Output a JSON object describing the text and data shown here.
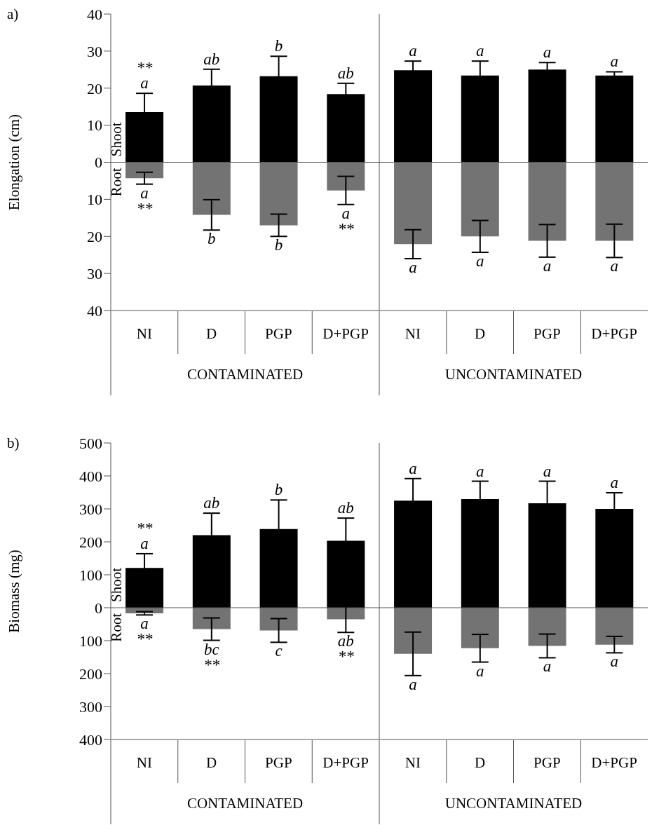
{
  "chart_data": [
    {
      "type": "bar",
      "title": "a)",
      "ylabel": "Elongation (cm)",
      "categories": [
        "NI",
        "D",
        "PGP",
        "D+PGP",
        "NI",
        "D",
        "PGP",
        "D+PGP"
      ],
      "stacked": true,
      "series": [
        {
          "name": "Shoot",
          "color": "#000000",
          "values": [
            13.5,
            20.7,
            23.2,
            18.4,
            24.8,
            23.4,
            25.0,
            23.4
          ],
          "errors": [
            5.1,
            4.4,
            5.4,
            2.9,
            2.5,
            3.9,
            1.9,
            1.0
          ],
          "value_labels": [
            "**\na",
            "ab",
            "b",
            "ab",
            "a",
            "a",
            "a",
            "a"
          ]
        },
        {
          "name": "Root",
          "color": "#737373",
          "values": [
            -4.3,
            -14.2,
            -17.0,
            -7.6,
            -22.1,
            -20.0,
            -21.2,
            -21.2
          ],
          "errors": [
            1.6,
            4.1,
            3.0,
            3.8,
            3.9,
            4.3,
            4.4,
            4.5
          ],
          "value_labels": [
            "a\n**",
            "b",
            "b",
            "a\n**",
            "a",
            "a",
            "a",
            "a"
          ]
        }
      ],
      "ylim": [
        -40,
        40
      ],
      "yticks": [
        40,
        30,
        20,
        10,
        0,
        {
          "value": -10,
          "label": "10"
        },
        {
          "value": -20,
          "label": "20"
        },
        {
          "value": -30,
          "label": "30"
        },
        {
          "value": -40,
          "label": "40"
        }
      ],
      "ref_lines": [
        {
          "axis": "y",
          "value": 0,
          "color": "#555555"
        }
      ],
      "annotations": [
        "CONTAMINATED",
        "UNCONTAMINATED"
      ]
    },
    {
      "type": "bar",
      "title": "b)",
      "ylabel": "Biomass (mg)",
      "categories": [
        "NI",
        "D",
        "PGP",
        "D+PGP",
        "NI",
        "D",
        "PGP",
        "D+PGP"
      ],
      "stacked": true,
      "series": [
        {
          "name": "Shoot",
          "color": "#000000",
          "values": [
            121,
            220,
            239,
            203,
            325,
            330,
            317,
            300
          ],
          "errors": [
            43,
            67,
            88,
            69,
            67,
            54,
            67,
            49
          ],
          "value_labels": [
            "**\na",
            "ab",
            "b",
            "ab",
            "a",
            "a",
            "a",
            "a"
          ]
        },
        {
          "name": "Root",
          "color": "#737373",
          "values": [
            -17,
            -65,
            -69,
            -35,
            -140,
            -123,
            -116,
            -112
          ],
          "errors": [
            5,
            34,
            36,
            40,
            66,
            42,
            36,
            25
          ],
          "value_labels": [
            "a\n**",
            "bc\n**",
            "c",
            "ab\n**",
            "a",
            "a",
            "a",
            "a"
          ]
        }
      ],
      "ylim": [
        -400,
        500
      ],
      "yticks": [
        500,
        400,
        300,
        200,
        100,
        0,
        {
          "value": -100,
          "label": "100"
        },
        {
          "value": -200,
          "label": "200"
        },
        {
          "value": -300,
          "label": "300"
        },
        {
          "value": -400,
          "label": "400"
        }
      ],
      "ref_lines": [
        {
          "axis": "y",
          "value": 0,
          "color": "#555555"
        }
      ],
      "annotations": [
        "CONTAMINATED",
        "UNCONTAMINATED"
      ]
    }
  ]
}
